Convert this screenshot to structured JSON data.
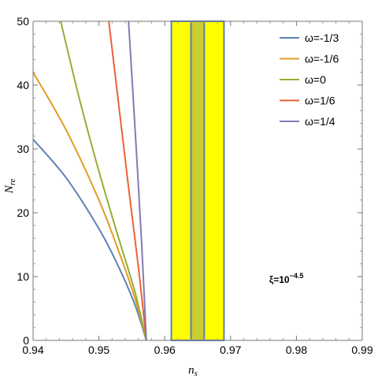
{
  "chart_data": {
    "type": "line",
    "title": "",
    "xlabel": {
      "main": "n",
      "sub": "s"
    },
    "ylabel": {
      "main": "N",
      "sub": "re"
    },
    "xlim": [
      0.94,
      0.99
    ],
    "ylim": [
      0,
      50
    ],
    "xticks": [
      0.94,
      0.95,
      0.96,
      0.97,
      0.98,
      0.99
    ],
    "xtick_labels": [
      "0.94",
      "0.95",
      "0.96",
      "0.97",
      "0.98",
      "0.99"
    ],
    "yticks": [
      0,
      10,
      20,
      30,
      40,
      50
    ],
    "ytick_labels": [
      "0",
      "10",
      "20",
      "30",
      "40",
      "50"
    ],
    "grid": false,
    "legend_position": "top-right",
    "series": [
      {
        "name": "ω=-1/3",
        "color": "#5E81B5",
        "x": [
          0.94,
          0.945,
          0.95,
          0.953,
          0.9555,
          0.9572
        ],
        "y": [
          31.5,
          25.5,
          17.5,
          11.5,
          5.5,
          0
        ]
      },
      {
        "name": "ω=-1/6",
        "color": "#E19C24",
        "x": [
          0.94,
          0.945,
          0.95,
          0.953,
          0.9555,
          0.9572
        ],
        "y": [
          42,
          33,
          22,
          14,
          6.5,
          0
        ]
      },
      {
        "name": "ω=0",
        "color": "#8FB032",
        "x": [
          0.9442,
          0.947,
          0.95,
          0.953,
          0.9555,
          0.9572
        ],
        "y": [
          50,
          38,
          26.5,
          16,
          7.5,
          0
        ]
      },
      {
        "name": "ω=1/6",
        "color": "#EB6235",
        "x": [
          0.9515,
          0.953,
          0.9545,
          0.956,
          0.9572
        ],
        "y": [
          50,
          37,
          24,
          11.5,
          0
        ]
      },
      {
        "name": "ω=1/4",
        "color": "#8778B3",
        "x": [
          0.9545,
          0.9555,
          0.9565,
          0.9572
        ],
        "y": [
          50,
          33,
          15,
          0
        ]
      }
    ],
    "bands": [
      {
        "x0": 0.961,
        "x1": 0.964,
        "fill": "#FFFF00",
        "edge": "#5E81B5"
      },
      {
        "x0": 0.964,
        "x1": 0.966,
        "fill": "#CCCC33",
        "edge": "#5E81B5"
      },
      {
        "x0": 0.966,
        "x1": 0.969,
        "fill": "#FFFF00",
        "edge": "#5E81B5"
      }
    ],
    "annotation": {
      "base": "ξ=10",
      "exponent": "−4.5",
      "x": 0.9785,
      "y": 9.5
    }
  }
}
